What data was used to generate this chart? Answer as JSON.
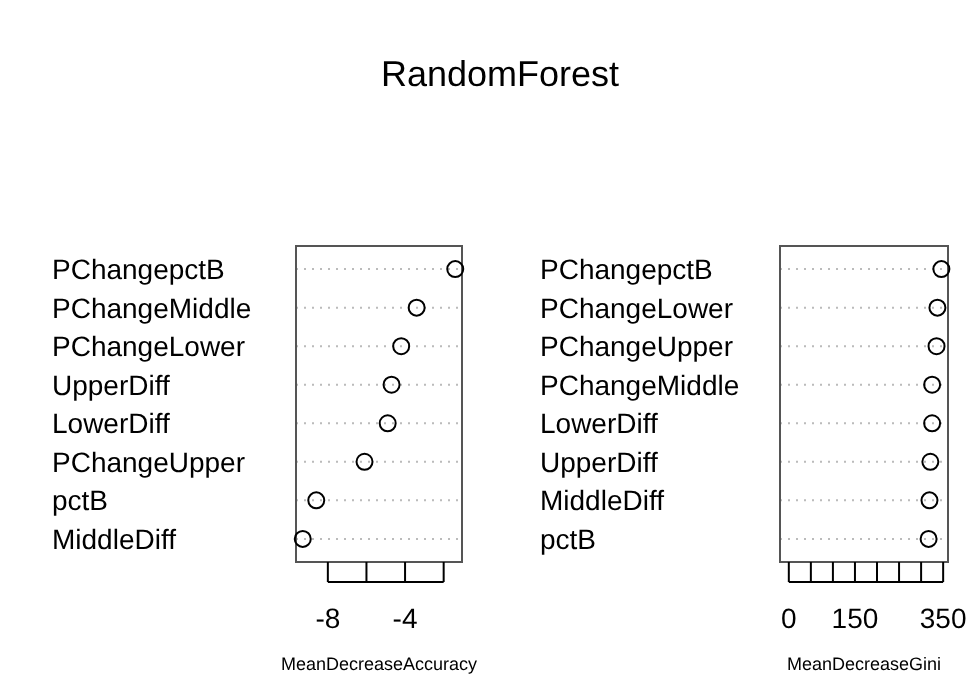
{
  "chart_data": [
    {
      "type": "scatter",
      "title": "RandomForest",
      "orientation": "horizontal",
      "marker": "circle",
      "grid": "y",
      "xlabel": "MeanDecreaseAccuracy",
      "categories": [
        "PChangepctB",
        "PChangeMiddle",
        "PChangeLower",
        "UpperDiff",
        "LowerDiff",
        "PChangeUpper",
        "pctB",
        "MiddleDiff"
      ],
      "values": [
        -1.4,
        -3.4,
        -4.2,
        -4.7,
        -4.9,
        -6.1,
        -8.6,
        -9.3
      ],
      "xlim": [
        -9.65,
        -1.05
      ],
      "xticks": [
        -8,
        {
          "value": -6,
          "label": null
        },
        -4,
        {
          "value": -2,
          "label": null
        }
      ]
    },
    {
      "type": "scatter",
      "orientation": "horizontal",
      "marker": "circle",
      "grid": "y",
      "xlabel": "MeanDecreaseGini",
      "categories": [
        "PChangepctB",
        "PChangeLower",
        "PChangeUpper",
        "PChangeMiddle",
        "LowerDiff",
        "UpperDiff",
        "MiddleDiff",
        "pctB"
      ],
      "values": [
        346,
        337,
        335,
        325,
        325,
        321,
        319,
        317
      ],
      "xlim": [
        -20,
        361
      ],
      "xticks": [
        0,
        {
          "value": 50,
          "label": null
        },
        {
          "value": 100,
          "label": null
        },
        150,
        {
          "value": 200,
          "label": null
        },
        {
          "value": 250,
          "label": null
        },
        {
          "value": 300,
          "label": null
        },
        350
      ]
    }
  ]
}
